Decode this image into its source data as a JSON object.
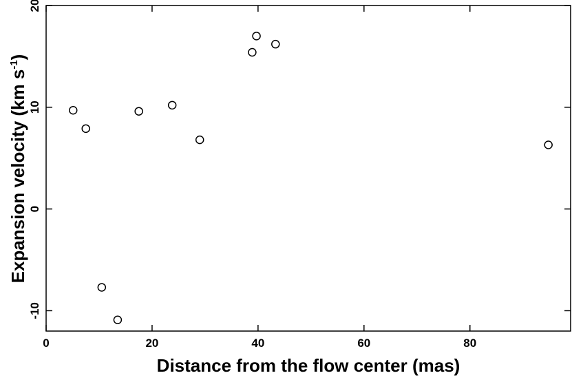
{
  "chart_data": {
    "type": "scatter",
    "xlabel": "Distance from the flow center (mas)",
    "ylabel": {
      "main": "Expansion velocity (km s",
      "superscript": "-1",
      "close": ")"
    },
    "xlim": [
      0,
      99
    ],
    "ylim": [
      -12,
      20
    ],
    "x_ticks": [
      0,
      20,
      40,
      60,
      80
    ],
    "y_ticks": [
      -10,
      0,
      10,
      20
    ],
    "x_tick_labels": [
      "0",
      "20",
      "40",
      "60",
      "80"
    ],
    "y_tick_labels": [
      "-10",
      "0",
      "10",
      "20"
    ],
    "grid": false,
    "marker": "open-circle",
    "points": [
      {
        "x": 5.1,
        "y": 9.7
      },
      {
        "x": 7.5,
        "y": 7.9
      },
      {
        "x": 10.5,
        "y": -7.7
      },
      {
        "x": 13.5,
        "y": -10.9
      },
      {
        "x": 17.5,
        "y": 9.6
      },
      {
        "x": 23.8,
        "y": 10.2
      },
      {
        "x": 29.0,
        "y": 6.8
      },
      {
        "x": 38.9,
        "y": 15.4
      },
      {
        "x": 39.7,
        "y": 17.0
      },
      {
        "x": 43.3,
        "y": 16.2
      },
      {
        "x": 94.8,
        "y": 6.3
      }
    ]
  }
}
